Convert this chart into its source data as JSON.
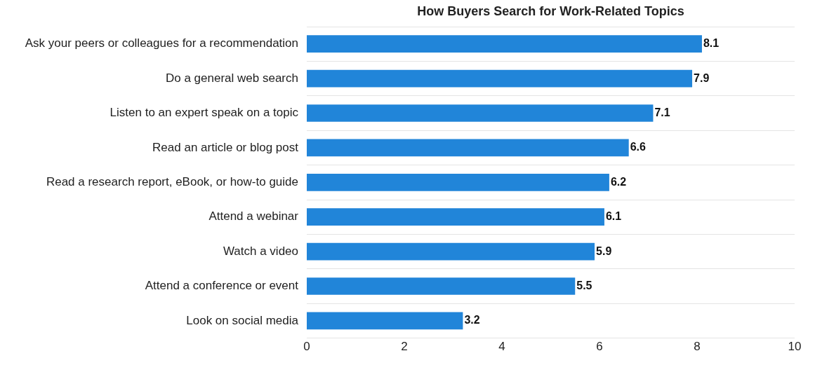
{
  "chart_data": {
    "type": "bar",
    "orientation": "horizontal",
    "title": "How Buyers Search for Work-Related Topics",
    "categories": [
      "Ask your peers or colleagues for a recommendation",
      "Do a general web search",
      "Listen to an expert speak on a topic",
      "Read an article or blog post",
      "Read a research report, eBook, or how-to guide",
      "Attend a webinar",
      "Watch a video",
      "Attend a conference or event",
      "Look on social media"
    ],
    "values": [
      8.1,
      7.9,
      7.1,
      6.6,
      6.2,
      6.1,
      5.9,
      5.5,
      3.2
    ],
    "color": "#2185d9",
    "xlim": [
      0,
      10
    ],
    "xticks": [
      0,
      2,
      4,
      6,
      8,
      10
    ],
    "grid": "y",
    "data_labels": true,
    "legend": false
  }
}
